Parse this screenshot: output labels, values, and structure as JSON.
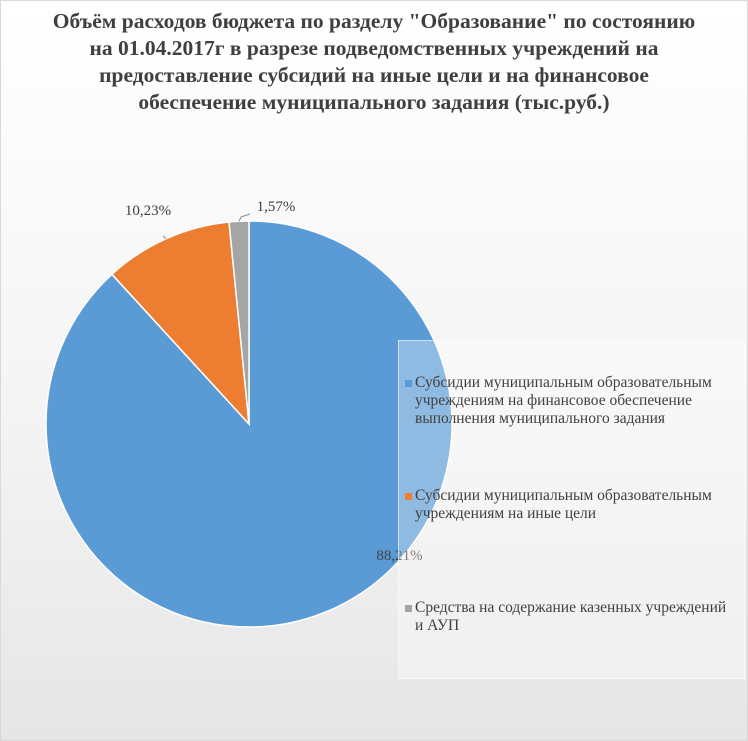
{
  "chart_data": {
    "type": "pie",
    "title": "Объём расходов бюджета по разделу \"Образование\" по состоянию на 01.04.2017г в разрезе подведомственных учреждений на предоставление субсидий на иные цели и на финансовое обеспечение муниципального задания (тыс.руб.)",
    "legend_position": "right",
    "slices": [
      {
        "label": "Субсидии муниципальным образовательным учреждениям на финансовое обеспечение выполнения муниципального задания",
        "value": 88.21,
        "display": "88,21%",
        "color": "#5B9BD5"
      },
      {
        "label": "Субсидии муниципальным образовательным учреждениям на иные цели",
        "value": 10.23,
        "display": "10,23%",
        "color": "#ED7D31"
      },
      {
        "label": "Средства на содержание казенных учреждений и АУП",
        "value": 1.57,
        "display": "1,57%",
        "color": "#A5A5A5"
      }
    ]
  }
}
